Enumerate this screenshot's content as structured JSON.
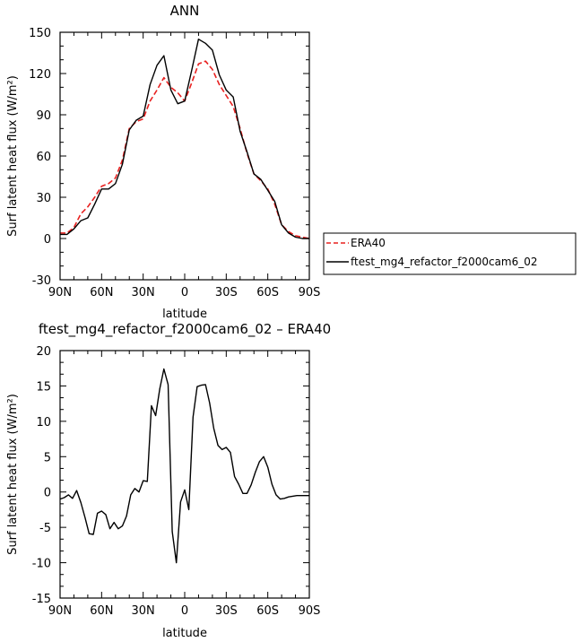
{
  "chart_data": [
    {
      "type": "line",
      "title": "ANN",
      "xlabel": "latitude",
      "ylabel": "Surf latent heat flux (W/m²)",
      "xlim": [
        90,
        -90
      ],
      "ylim": [
        -30,
        150
      ],
      "x_ticks": [
        {
          "value": 90,
          "label": "90N"
        },
        {
          "value": 60,
          "label": "60N"
        },
        {
          "value": 30,
          "label": "30N"
        },
        {
          "value": 0,
          "label": "0"
        },
        {
          "value": -30,
          "label": "30S"
        },
        {
          "value": -60,
          "label": "60S"
        },
        {
          "value": -90,
          "label": "90S"
        }
      ],
      "y_ticks": [
        -30,
        0,
        30,
        60,
        90,
        120,
        150
      ],
      "legend": {
        "placement": "outside-right"
      },
      "series": [
        {
          "name": "ERA40",
          "color": "#e8201f",
          "dash": "dashed",
          "x": [
            90,
            85,
            80,
            75,
            70,
            65,
            60,
            55,
            50,
            45,
            40,
            35,
            30,
            25,
            20,
            15,
            10,
            5,
            0,
            -5,
            -10,
            -15,
            -20,
            -25,
            -30,
            -35,
            -40,
            -45,
            -50,
            -55,
            -60,
            -65,
            -70,
            -75,
            -80,
            -85,
            -90
          ],
          "y": [
            4,
            4,
            8,
            18,
            23,
            30,
            38,
            40,
            44,
            57,
            80,
            85,
            87,
            100,
            108,
            117,
            110,
            106,
            100,
            113,
            127,
            129,
            123,
            112,
            104,
            96,
            80,
            62,
            47,
            42,
            36,
            25,
            10,
            5,
            2,
            1,
            0
          ]
        },
        {
          "name": "ftest_mg4_refactor_f2000cam6_02",
          "color": "#000000",
          "dash": "solid",
          "x": [
            90,
            85,
            80,
            75,
            70,
            65,
            60,
            55,
            50,
            45,
            40,
            35,
            30,
            25,
            20,
            15,
            10,
            5,
            0,
            -5,
            -10,
            -15,
            -20,
            -25,
            -30,
            -35,
            -40,
            -45,
            -50,
            -55,
            -60,
            -65,
            -70,
            -75,
            -80,
            -85,
            -90
          ],
          "y": [
            3,
            3,
            7,
            13,
            15,
            25,
            36,
            36,
            40,
            54,
            79,
            86,
            89,
            112,
            126,
            133,
            108,
            98,
            100,
            122,
            145,
            142,
            137,
            119,
            108,
            103,
            78,
            63,
            47,
            43,
            35,
            27,
            10,
            4,
            1,
            0,
            0
          ]
        }
      ]
    },
    {
      "type": "line",
      "title": "ftest_mg4_refactor_f2000cam6_02 – ERA40",
      "xlabel": "latitude",
      "ylabel": "Surf latent heat flux (W/m²)",
      "xlim": [
        90,
        -90
      ],
      "ylim": [
        -15,
        20
      ],
      "x_ticks": [
        {
          "value": 90,
          "label": "90N"
        },
        {
          "value": 60,
          "label": "60N"
        },
        {
          "value": 30,
          "label": "30N"
        },
        {
          "value": 0,
          "label": "0"
        },
        {
          "value": -30,
          "label": "30S"
        },
        {
          "value": -60,
          "label": "60S"
        },
        {
          "value": -90,
          "label": "90S"
        }
      ],
      "y_ticks": [
        -15,
        -10,
        -5,
        0,
        5,
        10,
        15,
        20
      ],
      "series": [
        {
          "color": "#000000",
          "dash": "solid",
          "x": [
            90,
            87,
            84,
            81,
            78,
            75,
            72,
            69,
            66,
            63,
            60,
            57,
            54,
            51,
            48,
            45,
            42,
            39,
            36,
            33,
            30,
            27,
            24,
            21,
            18,
            15,
            12,
            9,
            6,
            3,
            0,
            -3,
            -6,
            -9,
            -12,
            -15,
            -18,
            -21,
            -24,
            -27,
            -30,
            -33,
            -36,
            -39,
            -42,
            -45,
            -48,
            -51,
            -54,
            -57,
            -60,
            -63,
            -66,
            -69,
            -72,
            -75,
            -78,
            -81,
            -84,
            -87,
            -90
          ],
          "y": [
            -1.0,
            -0.8,
            -0.4,
            -0.9,
            0.2,
            -1.5,
            -3.6,
            -5.9,
            -6.0,
            -3.0,
            -2.7,
            -3.2,
            -5.2,
            -4.3,
            -5.2,
            -4.8,
            -3.4,
            -0.4,
            0.5,
            0.0,
            1.6,
            1.5,
            12.2,
            10.8,
            14.6,
            17.4,
            15.2,
            -5.6,
            -10.0,
            -1.4,
            0.3,
            -2.5,
            10.6,
            14.9,
            15.1,
            15.2,
            12.6,
            9.0,
            6.6,
            6.0,
            6.3,
            5.6,
            2.2,
            1.1,
            -0.2,
            -0.2,
            1.0,
            2.8,
            4.3,
            5.0,
            3.5,
            1.1,
            -0.4,
            -1.0,
            -0.9,
            -0.7,
            -0.6,
            -0.5,
            -0.5,
            -0.5,
            -0.5
          ]
        }
      ]
    }
  ]
}
